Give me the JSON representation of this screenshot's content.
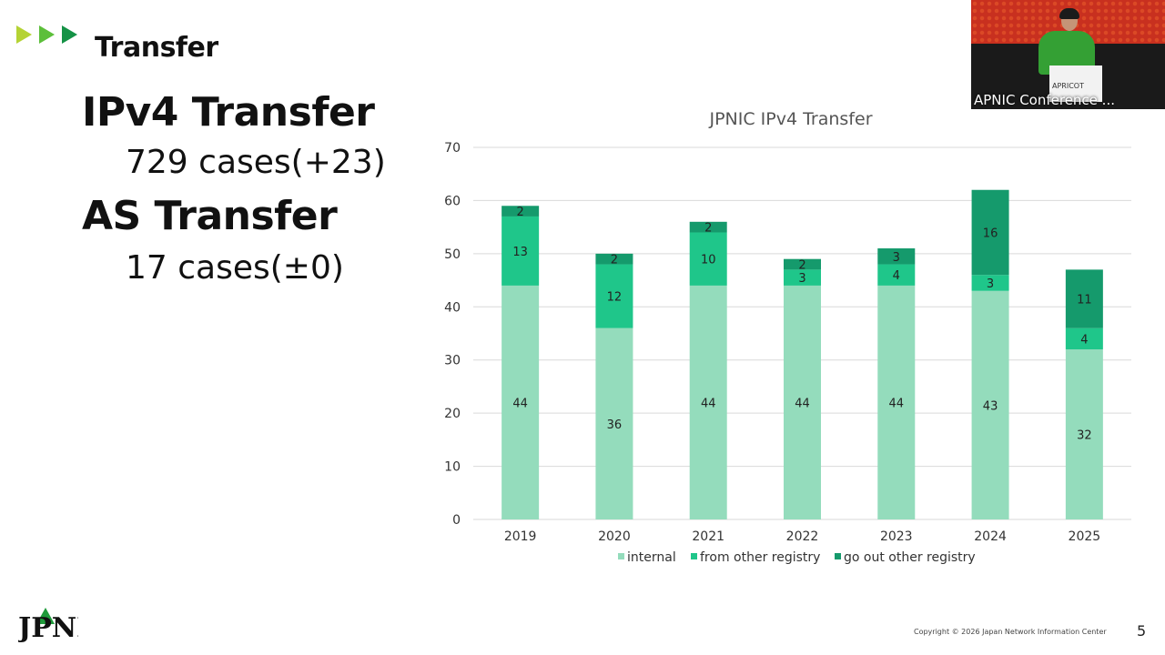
{
  "slide": {
    "section_title": "Transfer",
    "ipv4_heading": "IPv4 Transfer",
    "ipv4_cases": "729 cases(+23)",
    "as_heading": "AS Transfer",
    "as_cases": "17 cases(±0)",
    "copyright": "Copyright © 2026 Japan Network Information Center",
    "page_number": "5",
    "logo_text": "JPNIC"
  },
  "video": {
    "caption": "APNIC Conference ...",
    "lectern_text": "APRICOT"
  },
  "colors": {
    "internal": "#94dcbc",
    "from_other_registry": "#1fc68a",
    "go_out_other_registry": "#159a6c",
    "gridline": "#d9d9d9",
    "arrow_1": "#b5d334",
    "arrow_2": "#5cbf3a",
    "arrow_3": "#159246"
  },
  "chart_data": {
    "type": "bar",
    "stacked": true,
    "title": "JPNIC IPv4 Transfer",
    "categories": [
      "2019",
      "2020",
      "2021",
      "2022",
      "2023",
      "2024",
      "2025"
    ],
    "series": [
      {
        "name": "internal",
        "values": [
          44,
          36,
          44,
          44,
          44,
          43,
          32
        ]
      },
      {
        "name": "from other registry",
        "values": [
          13,
          12,
          10,
          3,
          4,
          3,
          4
        ]
      },
      {
        "name": "go out other registry",
        "values": [
          2,
          2,
          2,
          2,
          3,
          16,
          11
        ]
      }
    ],
    "ylim": [
      0,
      70
    ],
    "yticks": [
      0,
      10,
      20,
      30,
      40,
      50,
      60,
      70
    ],
    "grid": true,
    "legend": "bottom"
  }
}
